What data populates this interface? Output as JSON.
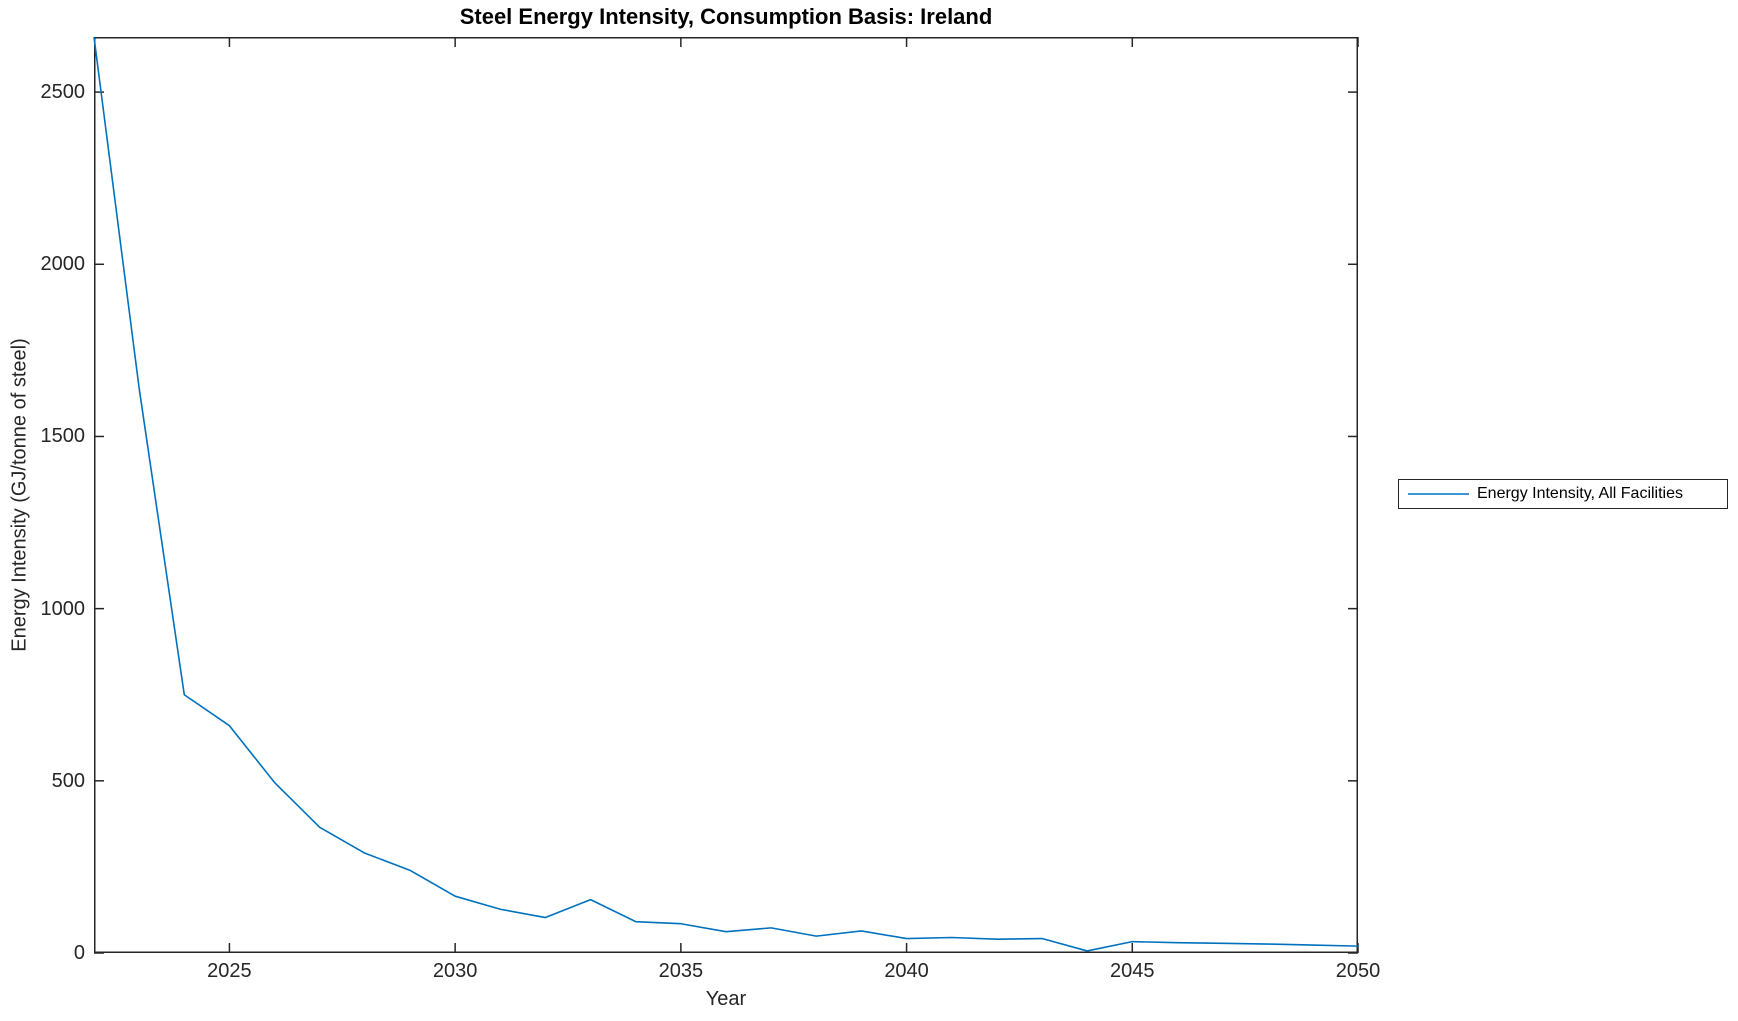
{
  "figure": {
    "background": "#ffffff",
    "axis_color": "#262626"
  },
  "chart_data": {
    "type": "line",
    "title": "Steel Energy Intensity, Consumption Basis: Ireland",
    "xlabel": "Year",
    "ylabel": "Energy Intensity (GJ/tonne of steel)",
    "x": [
      2022,
      2023,
      2024,
      2025,
      2026,
      2027,
      2028,
      2029,
      2030,
      2031,
      2032,
      2033,
      2034,
      2035,
      2036,
      2037,
      2038,
      2039,
      2040,
      2041,
      2042,
      2043,
      2044,
      2045,
      2046,
      2047,
      2048,
      2049,
      2050
    ],
    "series": [
      {
        "name": "Energy Intensity, All Facilities",
        "color": "#0072BD",
        "values": [
          2660,
          1640,
          750,
          660,
          495,
          365,
          290,
          240,
          165,
          127,
          103,
          155,
          91,
          85,
          62,
          73,
          49,
          64,
          42,
          45,
          40,
          42,
          6,
          33,
          30,
          28,
          26,
          23,
          20
        ]
      }
    ],
    "xlim": [
      2022,
      2050
    ],
    "ylim": [
      0,
      2660
    ],
    "xticks": [
      2025,
      2030,
      2035,
      2040,
      2045,
      2050
    ],
    "yticks": [
      0,
      500,
      1000,
      1500,
      2000,
      2500
    ],
    "grid": false,
    "legend_position": "outside-right"
  },
  "legend": {
    "items": [
      {
        "label": "Energy Intensity, All Facilities",
        "color": "#0072BD"
      }
    ]
  }
}
